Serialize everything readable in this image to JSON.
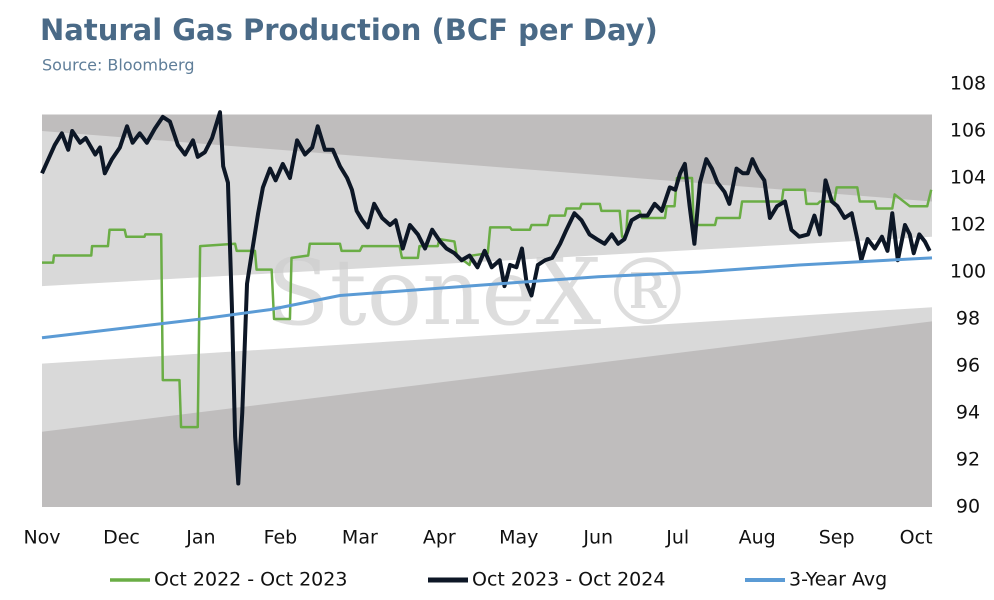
{
  "chart_data": {
    "type": "line",
    "title": "Natural Gas Production (BCF per Day)",
    "subtitle": "Source: Bloomberg",
    "watermark": "StoneX®",
    "xlim": [
      0,
      11.2
    ],
    "xticks": [
      {
        "value": 0,
        "label": "Nov"
      },
      {
        "value": 1,
        "label": "Dec"
      },
      {
        "value": 2,
        "label": "Jan"
      },
      {
        "value": 3,
        "label": "Feb"
      },
      {
        "value": 4,
        "label": "Mar"
      },
      {
        "value": 5,
        "label": "Apr"
      },
      {
        "value": 6,
        "label": "May"
      },
      {
        "value": 7,
        "label": "Jun"
      },
      {
        "value": 8,
        "label": "Jul"
      },
      {
        "value": 9,
        "label": "Aug"
      },
      {
        "value": 10,
        "label": "Sep"
      },
      {
        "value": 11,
        "label": "Oct"
      }
    ],
    "ylim": [
      90,
      108
    ],
    "yticks": [
      90,
      92,
      94,
      96,
      98,
      100,
      102,
      104,
      106,
      108
    ],
    "grid": false,
    "legend": "bottom",
    "bands": [
      {
        "color": "#bfbdbd",
        "x": [
          0,
          11.2
        ],
        "lower": [
          90,
          90
        ],
        "upper": [
          106.7,
          106.7
        ]
      },
      {
        "color": "#d9d9d9",
        "x": [
          0,
          11.2
        ],
        "lower": [
          93.2,
          97.9
        ],
        "upper": [
          106.0,
          103.0
        ]
      },
      {
        "color": "#ffffff",
        "x": [
          0,
          11.2
        ],
        "lower": [
          96.1,
          98.5
        ],
        "upper": [
          99.4,
          101.5
        ]
      }
    ],
    "series": [
      {
        "name": "Oct 2022 - Oct 2023",
        "color": "#6aad45",
        "width": 2.5,
        "x": [
          0,
          0.14,
          0.15,
          0.62,
          0.63,
          0.83,
          0.85,
          1.04,
          1.06,
          1.29,
          1.3,
          1.5,
          1.52,
          1.73,
          1.75,
          1.96,
          1.99,
          2.43,
          2.45,
          2.68,
          2.7,
          2.89,
          2.92,
          3.12,
          3.14,
          3.35,
          3.37,
          3.75,
          3.77,
          4.0,
          4.03,
          4.5,
          4.53,
          4.73,
          4.75,
          4.98,
          5.0,
          5.19,
          5.22,
          5.38,
          5.41,
          5.61,
          5.64,
          5.89,
          5.91,
          6.14,
          6.16,
          6.36,
          6.39,
          6.58,
          6.6,
          6.77,
          6.79,
          7.02,
          7.04,
          7.27,
          7.3,
          7.35,
          7.37,
          7.52,
          7.55,
          7.84,
          7.86,
          7.96,
          7.99,
          8.18,
          8.2,
          8.47,
          8.49,
          8.78,
          8.81,
          9.31,
          9.33,
          9.6,
          9.62,
          9.76,
          9.79,
          9.97,
          10.0,
          10.26,
          10.29,
          10.48,
          10.5,
          10.7,
          10.73,
          10.92,
          11.14,
          11.19
        ],
        "values": [
          100.4,
          100.4,
          100.7,
          100.7,
          101.1,
          101.1,
          101.8,
          101.8,
          101.5,
          101.5,
          101.6,
          101.6,
          95.4,
          95.4,
          93.4,
          93.4,
          101.1,
          101.2,
          100.9,
          100.9,
          100.1,
          100.1,
          98.0,
          98.0,
          100.6,
          100.7,
          101.2,
          101.2,
          100.9,
          100.9,
          101.1,
          101.1,
          100.6,
          100.6,
          101.1,
          101.1,
          101.4,
          101.3,
          100.7,
          100.3,
          100.7,
          100.8,
          101.9,
          101.9,
          101.8,
          101.8,
          102.0,
          102.0,
          102.4,
          102.4,
          102.7,
          102.7,
          102.9,
          102.9,
          102.6,
          102.6,
          101.5,
          101.5,
          102.6,
          102.6,
          102.3,
          102.3,
          102.8,
          102.8,
          104.0,
          104.0,
          102.0,
          102.0,
          102.3,
          102.3,
          103.0,
          103.0,
          103.5,
          103.5,
          102.9,
          102.9,
          103.0,
          103.0,
          103.6,
          103.6,
          103.0,
          103.0,
          102.7,
          102.7,
          103.3,
          102.8,
          102.8,
          103.5
        ]
      },
      {
        "name": "Oct 2023 - Oct 2024",
        "color": "#0d1726",
        "width": 4,
        "x": [
          0,
          0.08,
          0.16,
          0.25,
          0.33,
          0.38,
          0.48,
          0.55,
          0.67,
          0.73,
          0.79,
          0.88,
          0.98,
          1.07,
          1.14,
          1.23,
          1.32,
          1.42,
          1.52,
          1.61,
          1.71,
          1.8,
          1.9,
          1.96,
          2.05,
          2.14,
          2.24,
          2.28,
          2.34,
          2.39,
          2.43,
          2.47,
          2.52,
          2.58,
          2.64,
          2.72,
          2.78,
          2.87,
          2.94,
          3.03,
          3.12,
          3.21,
          3.31,
          3.4,
          3.47,
          3.56,
          3.66,
          3.75,
          3.84,
          3.9,
          3.96,
          4.03,
          4.1,
          4.18,
          4.28,
          4.38,
          4.45,
          4.54,
          4.63,
          4.73,
          4.82,
          4.91,
          5.01,
          5.09,
          5.19,
          5.28,
          5.38,
          5.48,
          5.57,
          5.66,
          5.76,
          5.82,
          5.89,
          5.97,
          6.04,
          6.1,
          6.16,
          6.24,
          6.33,
          6.42,
          6.52,
          6.6,
          6.7,
          6.79,
          6.89,
          6.98,
          7.08,
          7.17,
          7.25,
          7.33,
          7.42,
          7.52,
          7.62,
          7.71,
          7.8,
          7.9,
          7.97,
          8.03,
          8.09,
          8.15,
          8.21,
          8.28,
          8.36,
          8.43,
          8.5,
          8.59,
          8.65,
          8.74,
          8.82,
          8.88,
          8.94,
          9.01,
          9.09,
          9.16,
          9.25,
          9.35,
          9.43,
          9.53,
          9.64,
          9.72,
          9.79,
          9.86,
          9.94,
          10.01,
          10.1,
          10.19,
          10.26,
          10.31,
          10.39,
          10.48,
          10.57,
          10.64,
          10.7,
          10.77,
          10.86,
          10.92,
          10.97,
          11.04,
          11.11,
          11.17
        ],
        "values": [
          104.2,
          104.8,
          105.4,
          105.9,
          105.2,
          106.0,
          105.5,
          105.7,
          105.0,
          105.3,
          104.2,
          104.8,
          105.3,
          106.2,
          105.5,
          105.9,
          105.5,
          106.1,
          106.6,
          106.4,
          105.4,
          105.0,
          105.6,
          104.9,
          105.1,
          105.7,
          106.8,
          104.5,
          103.8,
          98.5,
          93.0,
          91.0,
          94.0,
          99.5,
          100.8,
          102.5,
          103.6,
          104.4,
          103.9,
          104.6,
          104.0,
          105.6,
          105.0,
          105.3,
          106.2,
          105.2,
          105.2,
          104.5,
          104.0,
          103.5,
          102.6,
          102.2,
          101.9,
          102.9,
          102.3,
          102.0,
          102.2,
          101.0,
          102.0,
          101.6,
          101.0,
          101.8,
          101.3,
          101.0,
          100.8,
          100.5,
          100.7,
          100.2,
          100.9,
          100.2,
          100.5,
          99.4,
          100.3,
          100.2,
          101.0,
          99.5,
          99.0,
          100.3,
          100.5,
          100.6,
          101.2,
          101.8,
          102.5,
          102.2,
          101.6,
          101.4,
          101.2,
          101.6,
          101.2,
          101.4,
          102.2,
          102.4,
          102.4,
          102.9,
          102.6,
          103.6,
          103.5,
          104.2,
          104.6,
          102.8,
          101.2,
          103.8,
          104.8,
          104.4,
          103.8,
          103.4,
          102.9,
          104.4,
          104.2,
          104.2,
          104.8,
          104.3,
          103.9,
          102.3,
          102.8,
          103.0,
          101.8,
          101.5,
          101.6,
          102.4,
          101.6,
          103.9,
          103.0,
          102.8,
          102.3,
          102.5,
          101.4,
          100.5,
          101.4,
          101.0,
          101.5,
          100.9,
          102.5,
          100.5,
          102.0,
          101.6,
          100.8,
          101.6,
          101.3,
          100.9
        ]
      },
      {
        "name": "3-Year Avg",
        "color": "#5b9bd5",
        "width": 3,
        "x": [
          0,
          2.0,
          2.87,
          3.75,
          5.76,
          7.0,
          8.28,
          9.53,
          11.2
        ],
        "values": [
          97.2,
          98.0,
          98.4,
          99.0,
          99.5,
          99.8,
          100.0,
          100.3,
          100.6
        ]
      }
    ]
  }
}
